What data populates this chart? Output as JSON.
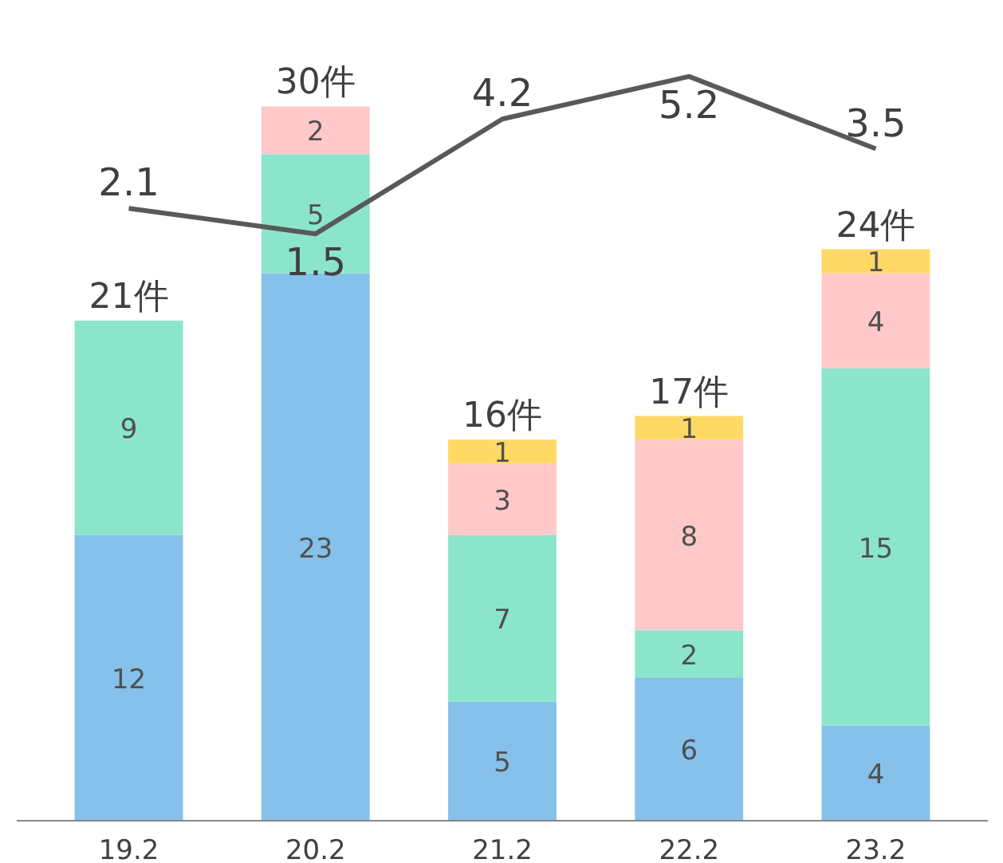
{
  "chart_data": {
    "type": "bar",
    "stacked": true,
    "categories": [
      "19.2",
      "20.2",
      "21.2",
      "22.2",
      "23.2"
    ],
    "series": [
      {
        "color": "#85c1ea",
        "values": [
          12,
          23,
          5,
          6,
          4
        ]
      },
      {
        "color": "#8be5cb",
        "values": [
          9,
          5,
          7,
          2,
          15
        ]
      },
      {
        "color": "#ffc9c9",
        "values": [
          null,
          2,
          3,
          8,
          4
        ]
      },
      {
        "color": "#ffd966",
        "values": [
          null,
          null,
          1,
          1,
          1
        ]
      },
      {
        "type": "line",
        "axis": "y2",
        "color": "#595959",
        "values": [
          2.1,
          1.5,
          4.2,
          5.2,
          3.5
        ]
      }
    ],
    "totals": [
      "21件",
      "30件",
      "16件",
      "17件",
      "24件"
    ],
    "data_labels": true
  }
}
